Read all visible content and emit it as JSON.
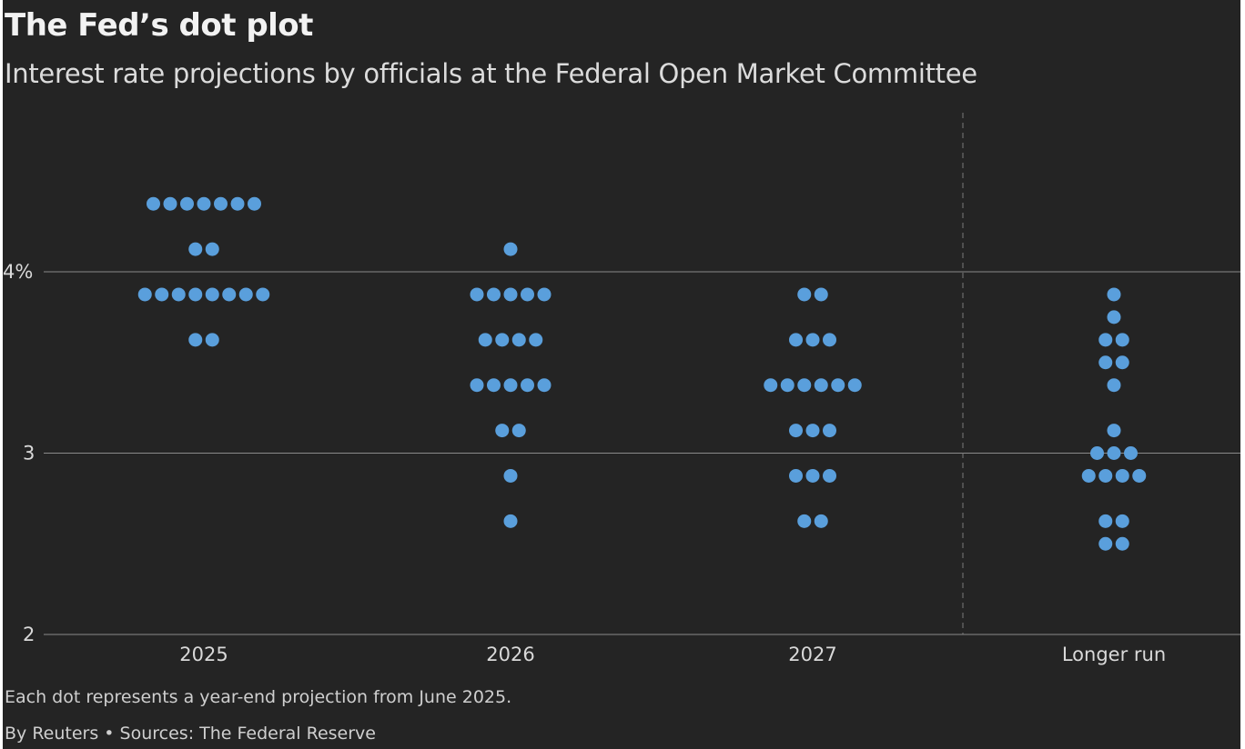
{
  "title": "The Fed’s dot plot",
  "subtitle": "Interest rate projections by officials at the Federal Open Market Committee",
  "note": "Each dot represents a year-end projection from June 2025.",
  "source": "By Reuters • Sources: The Federal Reserve",
  "colors": {
    "background": "#242424",
    "dot": "#5a9fdc",
    "text": "#e6e6e6"
  },
  "chart_data": {
    "type": "scatter",
    "title": "The Fed’s dot plot",
    "subtitle": "Interest rate projections by officials at the Federal Open Market Committee",
    "xlabel": "",
    "ylabel": "",
    "categories": [
      "2025",
      "2026",
      "2027",
      "Longer run"
    ],
    "ylim": [
      2,
      4.5
    ],
    "yticks": [
      {
        "value": 2,
        "label": "2"
      },
      {
        "value": 3,
        "label": "3"
      },
      {
        "value": 4,
        "label": "4%"
      }
    ],
    "grid": true,
    "divider_before": "Longer run",
    "series": [
      {
        "category": "2025",
        "projections": [
          {
            "rate": 4.375,
            "count": 7
          },
          {
            "rate": 4.125,
            "count": 2
          },
          {
            "rate": 3.875,
            "count": 8
          },
          {
            "rate": 3.625,
            "count": 2
          }
        ]
      },
      {
        "category": "2026",
        "projections": [
          {
            "rate": 4.125,
            "count": 1
          },
          {
            "rate": 3.875,
            "count": 5
          },
          {
            "rate": 3.625,
            "count": 4
          },
          {
            "rate": 3.375,
            "count": 5
          },
          {
            "rate": 3.125,
            "count": 2
          },
          {
            "rate": 2.875,
            "count": 1
          },
          {
            "rate": 2.625,
            "count": 1
          }
        ]
      },
      {
        "category": "2027",
        "projections": [
          {
            "rate": 3.875,
            "count": 2
          },
          {
            "rate": 3.625,
            "count": 3
          },
          {
            "rate": 3.375,
            "count": 6
          },
          {
            "rate": 3.125,
            "count": 3
          },
          {
            "rate": 2.875,
            "count": 3
          },
          {
            "rate": 2.625,
            "count": 2
          }
        ]
      },
      {
        "category": "Longer run",
        "projections": [
          {
            "rate": 3.875,
            "count": 1
          },
          {
            "rate": 3.75,
            "count": 1
          },
          {
            "rate": 3.625,
            "count": 2
          },
          {
            "rate": 3.5,
            "count": 2
          },
          {
            "rate": 3.375,
            "count": 1
          },
          {
            "rate": 3.125,
            "count": 1
          },
          {
            "rate": 3.0,
            "count": 3
          },
          {
            "rate": 2.875,
            "count": 4
          },
          {
            "rate": 2.625,
            "count": 2
          },
          {
            "rate": 2.5,
            "count": 2
          }
        ]
      }
    ]
  }
}
